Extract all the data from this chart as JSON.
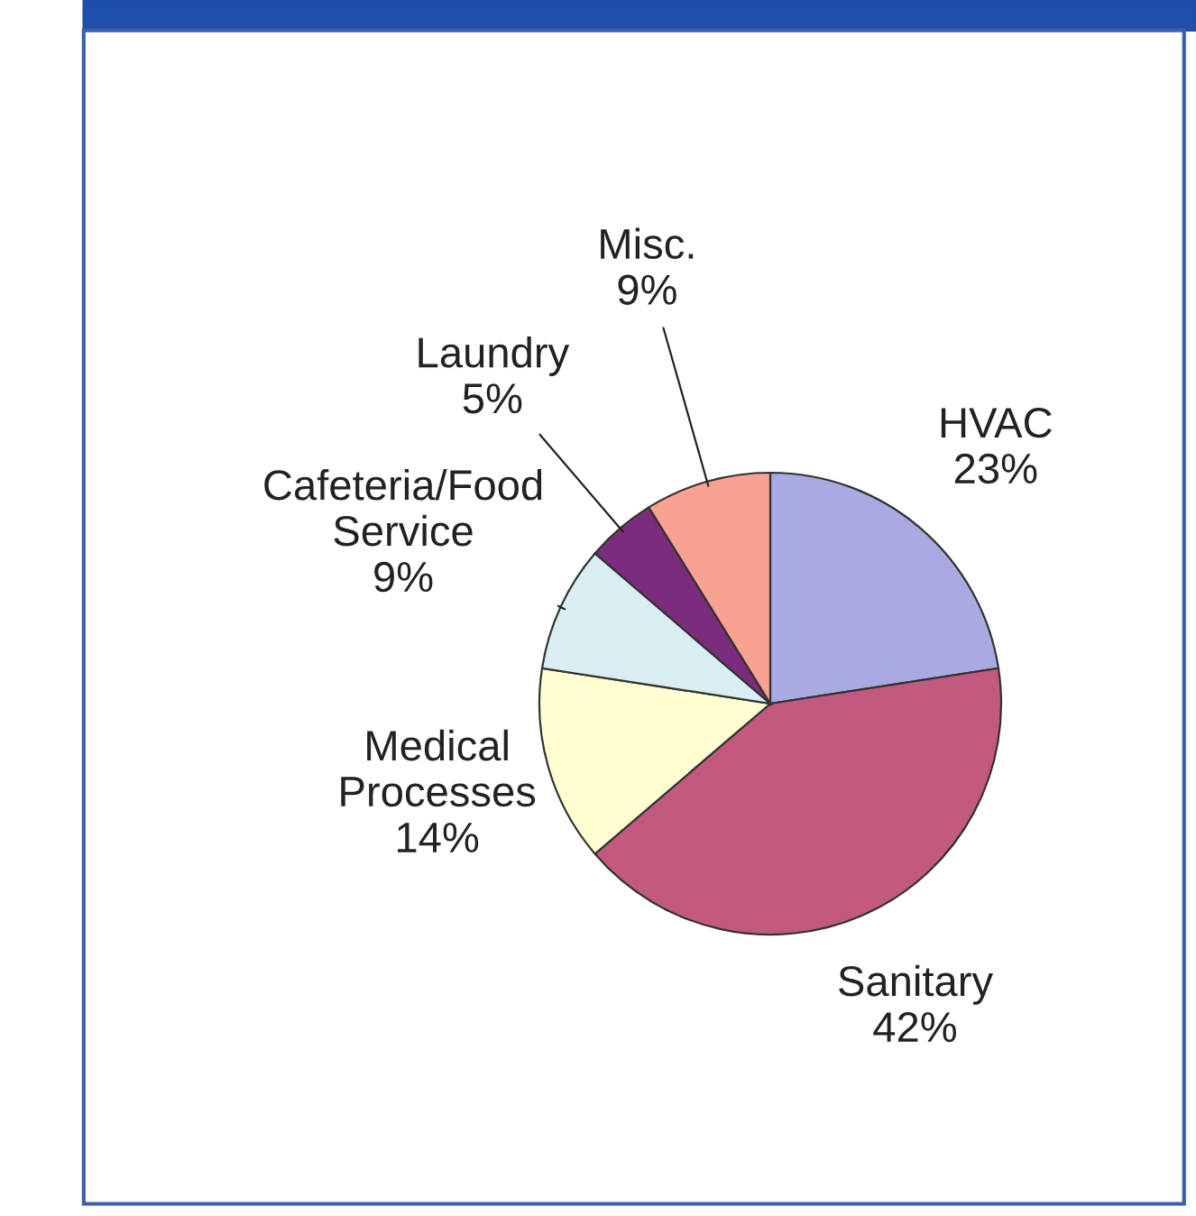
{
  "chart_data": {
    "type": "pie",
    "categories": [
      "HVAC",
      "Sanitary",
      "Medical\nProcesses",
      "Cafeteria/Food\nService",
      "Laundry",
      "Misc."
    ],
    "values": [
      23,
      42,
      14,
      9,
      5,
      9
    ],
    "value_labels": [
      "23%",
      "42%",
      "14%",
      "9%",
      "5%",
      "9%"
    ],
    "colors": [
      "#aaaae2",
      "#c2597f",
      "#ffffd2",
      "#d9eef3",
      "#7c2c7c",
      "#faa292"
    ],
    "legend": false
  }
}
